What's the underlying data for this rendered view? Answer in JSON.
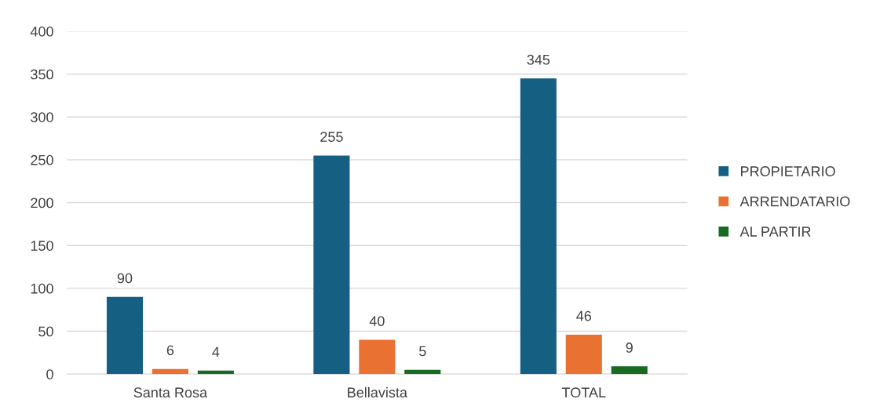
{
  "chart_data": {
    "type": "bar",
    "categories": [
      "Santa Rosa",
      "Bellavista",
      "TOTAL"
    ],
    "series": [
      {
        "name": "PROPIETARIO",
        "color": "#156082",
        "values": [
          90,
          255,
          345
        ]
      },
      {
        "name": "ARRENDATARIO",
        "color": "#e97132",
        "values": [
          6,
          40,
          46
        ]
      },
      {
        "name": "AL PARTIR",
        "color": "#196b24",
        "values": [
          4,
          5,
          9
        ]
      }
    ],
    "ylim": [
      0,
      400
    ],
    "yticks": [
      0,
      50,
      100,
      150,
      200,
      250,
      300,
      350,
      400
    ],
    "grid": "y",
    "legend": "right",
    "data_labels": true
  }
}
